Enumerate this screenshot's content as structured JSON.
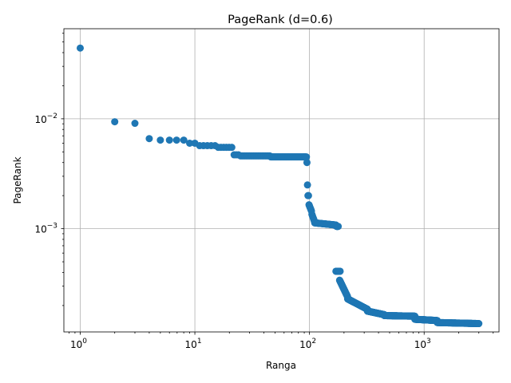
{
  "chart_data": {
    "type": "scatter",
    "title": "PageRank (d=0.6)",
    "xlabel": "Ranga",
    "ylabel": "PageRank",
    "xscale": "log",
    "yscale": "log",
    "xlim": [
      0.72,
      4500
    ],
    "ylim": [
      0.000115,
      0.066
    ],
    "x_ticks": [
      {
        "value": 1,
        "base": "10",
        "exp": "0"
      },
      {
        "value": 10,
        "base": "10",
        "exp": "1"
      },
      {
        "value": 100,
        "base": "10",
        "exp": "2"
      },
      {
        "value": 1000,
        "base": "10",
        "exp": "3"
      }
    ],
    "y_ticks": [
      {
        "value": 0.001,
        "base": "10",
        "exp": "−3"
      },
      {
        "value": 0.01,
        "base": "10",
        "exp": "−2"
      }
    ],
    "grid": true,
    "marker_color": "#1f77b4",
    "segments": [
      {
        "x_start": 1,
        "x_end": 1,
        "y_start": 0.044,
        "y_end": 0.044
      },
      {
        "x_start": 2,
        "x_end": 2,
        "y_start": 0.0094,
        "y_end": 0.0094
      },
      {
        "x_start": 3,
        "x_end": 3,
        "y_start": 0.0091,
        "y_end": 0.0091
      },
      {
        "x_start": 4,
        "x_end": 4,
        "y_start": 0.0066,
        "y_end": 0.0066
      },
      {
        "x_start": 5,
        "x_end": 5,
        "y_start": 0.0064,
        "y_end": 0.0064
      },
      {
        "x_start": 6,
        "x_end": 8,
        "y_start": 0.0064,
        "y_end": 0.0064
      },
      {
        "x_start": 9,
        "x_end": 10,
        "y_start": 0.006,
        "y_end": 0.006
      },
      {
        "x_start": 11,
        "x_end": 15,
        "y_start": 0.0057,
        "y_end": 0.0057
      },
      {
        "x_start": 16,
        "x_end": 21,
        "y_start": 0.0055,
        "y_end": 0.0055
      },
      {
        "x_start": 22,
        "x_end": 24,
        "y_start": 0.0047,
        "y_end": 0.0047
      },
      {
        "x_start": 25,
        "x_end": 45,
        "y_start": 0.0046,
        "y_end": 0.0046
      },
      {
        "x_start": 46,
        "x_end": 94,
        "y_start": 0.0045,
        "y_end": 0.0045
      },
      {
        "x_start": 95,
        "x_end": 95,
        "y_start": 0.004,
        "y_end": 0.004
      },
      {
        "x_start": 96,
        "x_end": 96,
        "y_start": 0.0025,
        "y_end": 0.0025
      },
      {
        "x_start": 97,
        "x_end": 98,
        "y_start": 0.002,
        "y_end": 0.002
      },
      {
        "x_start": 99,
        "x_end": 104,
        "y_start": 0.00165,
        "y_end": 0.00145
      },
      {
        "x_start": 105,
        "x_end": 110,
        "y_start": 0.00135,
        "y_end": 0.00118
      },
      {
        "x_start": 111,
        "x_end": 170,
        "y_start": 0.00113,
        "y_end": 0.00108
      },
      {
        "x_start": 172,
        "x_end": 178,
        "y_start": 0.00105,
        "y_end": 0.00105
      },
      {
        "x_start": 170,
        "x_end": 185,
        "y_start": 0.00041,
        "y_end": 0.00041
      },
      {
        "x_start": 183,
        "x_end": 215,
        "y_start": 0.00034,
        "y_end": 0.00024
      },
      {
        "x_start": 215,
        "x_end": 320,
        "y_start": 0.00023,
        "y_end": 0.000185
      },
      {
        "x_start": 320,
        "x_end": 450,
        "y_start": 0.000178,
        "y_end": 0.000165
      },
      {
        "x_start": 450,
        "x_end": 830,
        "y_start": 0.000162,
        "y_end": 0.00016
      },
      {
        "x_start": 830,
        "x_end": 1300,
        "y_start": 0.00015,
        "y_end": 0.000146
      },
      {
        "x_start": 1300,
        "x_end": 3000,
        "y_start": 0.00014,
        "y_end": 0.000137
      }
    ]
  }
}
